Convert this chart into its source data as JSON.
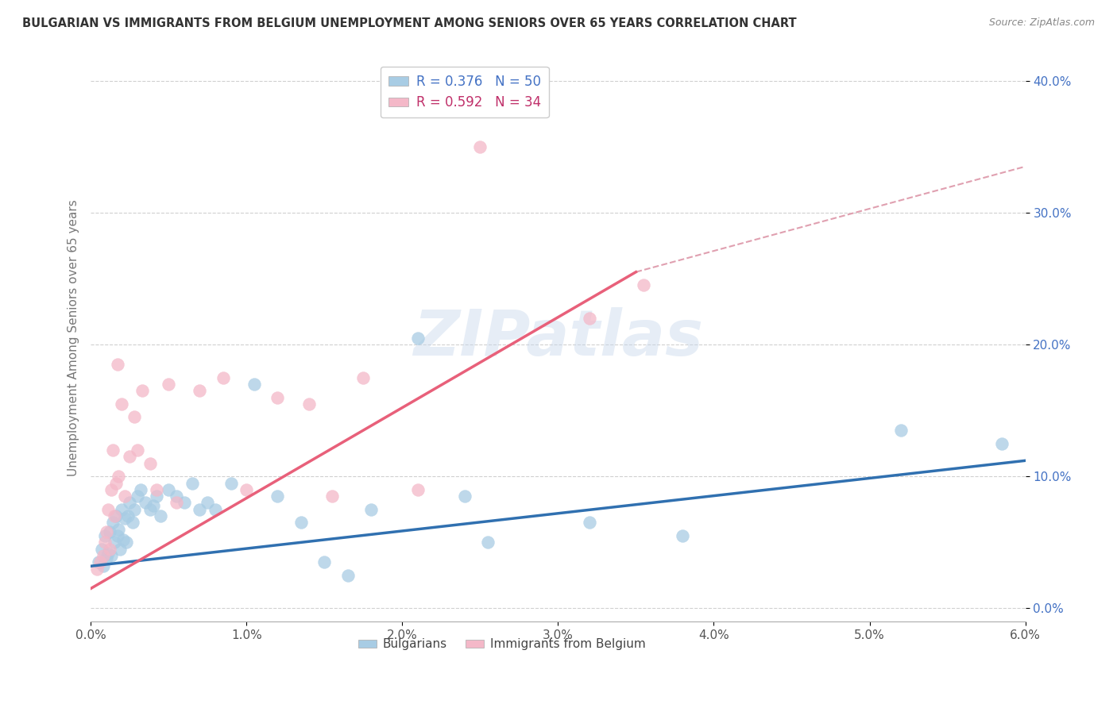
{
  "title": "BULGARIAN VS IMMIGRANTS FROM BELGIUM UNEMPLOYMENT AMONG SENIORS OVER 65 YEARS CORRELATION CHART",
  "source_text": "Source: ZipAtlas.com",
  "ylabel": "Unemployment Among Seniors over 65 years",
  "xlabel_ticks": [
    "0.0%",
    "1.0%",
    "2.0%",
    "3.0%",
    "4.0%",
    "5.0%",
    "6.0%"
  ],
  "xlabel_vals": [
    0.0,
    1.0,
    2.0,
    3.0,
    4.0,
    5.0,
    6.0
  ],
  "ylabel_ticks": [
    "0.0%",
    "10.0%",
    "20.0%",
    "30.0%",
    "40.0%"
  ],
  "ylabel_vals": [
    0.0,
    10.0,
    20.0,
    30.0,
    40.0
  ],
  "xlim": [
    0.0,
    6.0
  ],
  "ylim": [
    -1.0,
    42.0
  ],
  "legend1_R": "0.376",
  "legend1_N": "50",
  "legend2_R": "0.592",
  "legend2_N": "34",
  "color_blue": "#a8cce4",
  "color_pink": "#f4b8c8",
  "color_blue_line": "#3070b0",
  "color_pink_line": "#e8607a",
  "color_dashed": "#e0a0b0",
  "watermark": "ZIPatlas",
  "blue_line_x0": 0.0,
  "blue_line_y0": 3.2,
  "blue_line_x1": 6.0,
  "blue_line_y1": 11.2,
  "pink_line_x0": 0.0,
  "pink_line_y0": 1.5,
  "pink_line_x1": 3.5,
  "pink_line_y1": 25.5,
  "dash_line_x0": 3.5,
  "dash_line_y0": 25.5,
  "dash_line_x1": 6.0,
  "dash_line_y1": 33.5,
  "bulgarians_x": [
    0.05,
    0.07,
    0.08,
    0.09,
    0.1,
    0.11,
    0.12,
    0.13,
    0.14,
    0.15,
    0.16,
    0.17,
    0.18,
    0.19,
    0.2,
    0.21,
    0.22,
    0.23,
    0.24,
    0.25,
    0.27,
    0.28,
    0.3,
    0.32,
    0.35,
    0.38,
    0.4,
    0.42,
    0.45,
    0.5,
    0.55,
    0.6,
    0.65,
    0.7,
    0.75,
    0.8,
    0.9,
    1.05,
    1.2,
    1.35,
    1.5,
    1.65,
    1.8,
    2.1,
    2.4,
    2.55,
    3.2,
    3.8,
    5.2,
    5.85
  ],
  "bulgarians_y": [
    3.5,
    4.5,
    3.2,
    5.5,
    3.8,
    4.2,
    5.8,
    4.0,
    6.5,
    5.0,
    7.0,
    5.5,
    6.0,
    4.5,
    7.5,
    5.2,
    6.8,
    5.0,
    7.0,
    8.0,
    6.5,
    7.5,
    8.5,
    9.0,
    8.0,
    7.5,
    7.8,
    8.5,
    7.0,
    9.0,
    8.5,
    8.0,
    9.5,
    7.5,
    8.0,
    7.5,
    9.5,
    17.0,
    8.5,
    6.5,
    3.5,
    2.5,
    7.5,
    20.5,
    8.5,
    5.0,
    6.5,
    5.5,
    13.5,
    12.5
  ],
  "belgium_x": [
    0.04,
    0.06,
    0.08,
    0.09,
    0.1,
    0.11,
    0.12,
    0.13,
    0.14,
    0.15,
    0.16,
    0.17,
    0.18,
    0.2,
    0.22,
    0.25,
    0.28,
    0.3,
    0.33,
    0.38,
    0.42,
    0.5,
    0.55,
    0.7,
    0.85,
    1.0,
    1.2,
    1.4,
    1.55,
    1.75,
    2.1,
    2.5,
    3.2,
    3.55
  ],
  "belgium_y": [
    3.0,
    3.5,
    4.0,
    5.0,
    5.8,
    7.5,
    4.5,
    9.0,
    12.0,
    7.0,
    9.5,
    18.5,
    10.0,
    15.5,
    8.5,
    11.5,
    14.5,
    12.0,
    16.5,
    11.0,
    9.0,
    17.0,
    8.0,
    16.5,
    17.5,
    9.0,
    16.0,
    15.5,
    8.5,
    17.5,
    9.0,
    35.0,
    22.0,
    24.5
  ]
}
